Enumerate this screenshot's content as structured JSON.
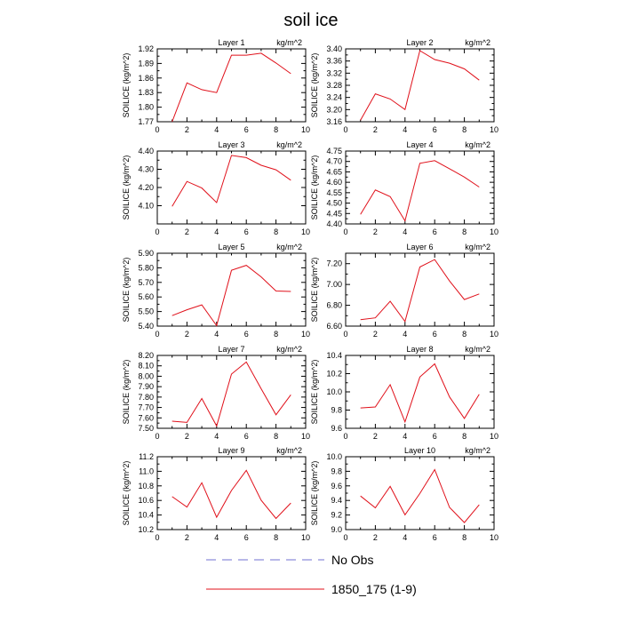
{
  "figure": {
    "title": "soil ice",
    "legend": [
      {
        "label": "No Obs",
        "color": "#7070d0",
        "style": "dashed"
      },
      {
        "label": "1850_175 (1-9)",
        "color": "#e0101a",
        "style": "solid"
      }
    ]
  },
  "chart_data": [
    {
      "type": "line",
      "title": "Layer 1",
      "unit_label": "kg/m^2",
      "ylabel": "SOILICE  (kg/m^2)",
      "xlim": [
        0,
        10
      ],
      "xticks": [
        0,
        2,
        4,
        6,
        8,
        10
      ],
      "ylim": [
        1.77,
        1.92
      ],
      "yticks": [
        "1.77",
        "1.80",
        "1.83",
        "1.86",
        "1.89",
        "1.92"
      ],
      "grid": false,
      "series": [
        {
          "x": [
            1,
            2,
            3,
            4,
            5,
            6,
            7,
            8,
            9
          ],
          "values": [
            1.77,
            1.85,
            1.836,
            1.83,
            1.907,
            1.907,
            1.911,
            1.891,
            1.869
          ]
        }
      ]
    },
    {
      "type": "line",
      "title": "Layer 2",
      "unit_label": "kg/m^2",
      "ylabel": "SOILICE  (kg/m^2)",
      "xlim": [
        0,
        10
      ],
      "xticks": [
        0,
        2,
        4,
        6,
        8,
        10
      ],
      "ylim": [
        3.16,
        3.4
      ],
      "yticks": [
        "3.16",
        "3.20",
        "3.24",
        "3.28",
        "3.32",
        "3.36",
        "3.40"
      ],
      "grid": false,
      "series": [
        {
          "x": [
            1,
            2,
            3,
            4,
            5,
            6,
            7,
            8,
            9
          ],
          "values": [
            3.165,
            3.252,
            3.235,
            3.2,
            3.394,
            3.365,
            3.353,
            3.334,
            3.297
          ]
        }
      ]
    },
    {
      "type": "line",
      "title": "Layer 3",
      "unit_label": "kg/m^2",
      "ylabel": "SOILICE  (kg/m^2)",
      "xlim": [
        0,
        10
      ],
      "xticks": [
        0,
        2,
        4,
        6,
        8,
        10
      ],
      "ylim": [
        4.0,
        4.4
      ],
      "yticks": [
        "4.10",
        "4.20",
        "4.30",
        "4.40"
      ],
      "grid": false,
      "series": [
        {
          "x": [
            1,
            2,
            3,
            4,
            5,
            6,
            7,
            8,
            9
          ],
          "values": [
            4.096,
            4.233,
            4.197,
            4.117,
            4.376,
            4.364,
            4.322,
            4.297,
            4.24
          ]
        }
      ]
    },
    {
      "type": "line",
      "title": "Layer 4",
      "unit_label": "kg/m^2",
      "ylabel": "SOILICE  (kg/m^2)",
      "xlim": [
        0,
        10
      ],
      "xticks": [
        0,
        2,
        4,
        6,
        8,
        10
      ],
      "ylim": [
        4.4,
        4.75
      ],
      "yticks": [
        "4.40",
        "4.45",
        "4.50",
        "4.55",
        "4.60",
        "4.65",
        "4.70",
        "4.75"
      ],
      "grid": false,
      "series": [
        {
          "x": [
            1,
            2,
            3,
            4,
            5,
            6,
            7,
            8,
            9
          ],
          "values": [
            4.446,
            4.563,
            4.531,
            4.415,
            4.691,
            4.704,
            4.665,
            4.625,
            4.577
          ]
        }
      ]
    },
    {
      "type": "line",
      "title": "Layer 5",
      "unit_label": "kg/m^2",
      "ylabel": "SOILICE  (kg/m^2)",
      "xlim": [
        0,
        10
      ],
      "xticks": [
        0,
        2,
        4,
        6,
        8,
        10
      ],
      "ylim": [
        5.4,
        5.9
      ],
      "yticks": [
        "5.40",
        "5.50",
        "5.60",
        "5.70",
        "5.80",
        "5.90"
      ],
      "grid": false,
      "series": [
        {
          "x": [
            1,
            2,
            3,
            4,
            5,
            6,
            7,
            8,
            9
          ],
          "values": [
            5.472,
            5.512,
            5.546,
            5.403,
            5.783,
            5.817,
            5.738,
            5.641,
            5.638
          ]
        }
      ]
    },
    {
      "type": "line",
      "title": "Layer 6",
      "unit_label": "kg/m^2",
      "ylabel": "SOILICE  (kg/m^2)",
      "xlim": [
        0,
        10
      ],
      "xticks": [
        0,
        2,
        4,
        6,
        8,
        10
      ],
      "ylim": [
        6.6,
        7.3
      ],
      "yticks": [
        "6.60",
        "6.80",
        "7.00",
        "7.20"
      ],
      "grid": false,
      "series": [
        {
          "x": [
            1,
            2,
            3,
            4,
            5,
            6,
            7,
            8,
            9
          ],
          "values": [
            6.662,
            6.679,
            6.838,
            6.644,
            7.168,
            7.239,
            7.034,
            6.855,
            6.909
          ]
        }
      ]
    },
    {
      "type": "line",
      "title": "Layer 7",
      "unit_label": "kg/m^2",
      "ylabel": "SOILICE  (kg/m^2)",
      "xlim": [
        0,
        10
      ],
      "xticks": [
        0,
        2,
        4,
        6,
        8,
        10
      ],
      "ylim": [
        7.5,
        8.2
      ],
      "yticks": [
        "7.50",
        "7.60",
        "7.70",
        "7.80",
        "7.90",
        "8.00",
        "8.10",
        "8.20"
      ],
      "grid": false,
      "series": [
        {
          "x": [
            1,
            2,
            3,
            4,
            5,
            6,
            7,
            8,
            9
          ],
          "values": [
            7.568,
            7.556,
            7.786,
            7.522,
            8.021,
            8.137,
            7.88,
            7.63,
            7.822
          ]
        }
      ]
    },
    {
      "type": "line",
      "title": "Layer 8",
      "unit_label": "kg/m^2",
      "ylabel": "SOILICE  (kg/m^2)",
      "xlim": [
        0,
        10
      ],
      "xticks": [
        0,
        2,
        4,
        6,
        8,
        10
      ],
      "ylim": [
        9.6,
        10.4
      ],
      "yticks": [
        "9.6",
        "9.8",
        "10.0",
        "10.2",
        "10.4"
      ],
      "grid": false,
      "series": [
        {
          "x": [
            1,
            2,
            3,
            4,
            5,
            6,
            7,
            8,
            9
          ],
          "values": [
            9.823,
            9.834,
            10.079,
            9.67,
            10.163,
            10.307,
            9.944,
            9.708,
            9.974
          ]
        }
      ]
    },
    {
      "type": "line",
      "title": "Layer 9",
      "unit_label": "kg/m^2",
      "ylabel": "SOILICE  (kg/m^2)",
      "xlim": [
        0,
        10
      ],
      "xticks": [
        0,
        2,
        4,
        6,
        8,
        10
      ],
      "ylim": [
        10.2,
        11.2
      ],
      "yticks": [
        "10.2",
        "10.4",
        "10.6",
        "10.8",
        "11.0",
        "11.2"
      ],
      "grid": false,
      "series": [
        {
          "x": [
            1,
            2,
            3,
            4,
            5,
            6,
            7,
            8,
            9
          ],
          "values": [
            10.652,
            10.51,
            10.843,
            10.37,
            10.737,
            11.014,
            10.603,
            10.353,
            10.565
          ]
        }
      ]
    },
    {
      "type": "line",
      "title": "Layer 10",
      "unit_label": "kg/m^2",
      "ylabel": "SOILICE  (kg/m^2)",
      "xlim": [
        0,
        10
      ],
      "xticks": [
        0,
        2,
        4,
        6,
        8,
        10
      ],
      "ylim": [
        9.0,
        10.0
      ],
      "yticks": [
        "9.0",
        "9.2",
        "9.4",
        "9.6",
        "9.8",
        "10.0"
      ],
      "grid": false,
      "series": [
        {
          "x": [
            1,
            2,
            3,
            4,
            5,
            6,
            7,
            8,
            9
          ],
          "values": [
            9.461,
            9.299,
            9.593,
            9.202,
            9.495,
            9.823,
            9.305,
            9.096,
            9.34
          ]
        }
      ]
    }
  ]
}
